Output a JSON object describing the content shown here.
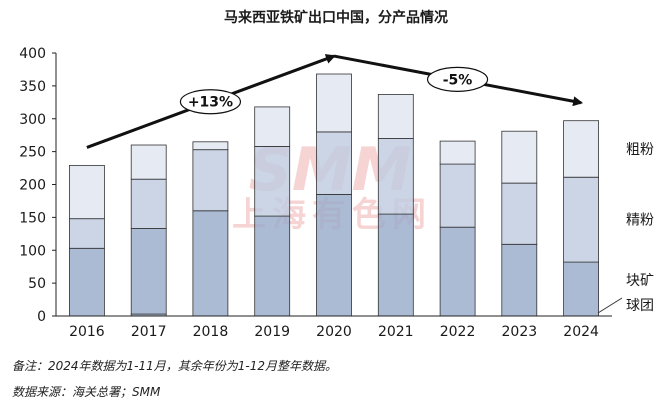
{
  "chart_data": {
    "type": "bar",
    "stacked": true,
    "title": "马来西亚铁矿出口中国，分产品情况",
    "categories": [
      "2016",
      "2017",
      "2018",
      "2019",
      "2020",
      "2021",
      "2022",
      "2023",
      "2024"
    ],
    "series": [
      {
        "name": "球团",
        "values": [
          0,
          3,
          0,
          0,
          0,
          0,
          0,
          0,
          0
        ],
        "color": "#9aaccb"
      },
      {
        "name": "块矿",
        "values": [
          103,
          130,
          160,
          152,
          185,
          155,
          135,
          109,
          82
        ],
        "color": "#9aaccb"
      },
      {
        "name": "精粉",
        "values": [
          45,
          75,
          93,
          106,
          95,
          115,
          96,
          93,
          129
        ],
        "color": "#bfcce0"
      },
      {
        "name": "粗粉",
        "values": [
          81,
          52,
          12,
          60,
          88,
          67,
          35,
          79,
          86
        ],
        "color": "#dfe5f0"
      }
    ],
    "ylim": [
      0,
      400
    ],
    "yticks": [
      0,
      50,
      100,
      150,
      200,
      250,
      300,
      350,
      400
    ],
    "annotations": [
      {
        "text": "+13%",
        "from": "2016",
        "to": "2020"
      },
      {
        "text": "-5%",
        "from": "2020",
        "to": "2024"
      }
    ],
    "watermark": {
      "line1": "SMM",
      "line2": "上海有色网"
    }
  },
  "footer": {
    "note": "备注：2024年数据为1-11月，其余年份为1-12月整年数据。",
    "source": "数据来源：海关总署；SMM"
  }
}
